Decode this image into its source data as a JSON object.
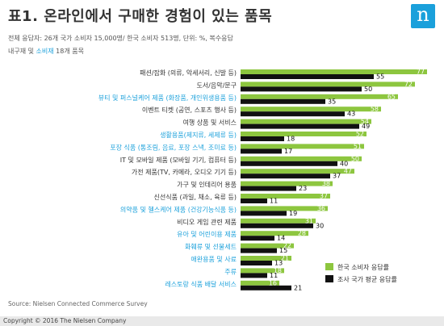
{
  "header": {
    "title": "표1. 온라인에서 구매한 경험이 있는 품목",
    "logo_letter": "n",
    "subtitle_line1": "전체 응답자: 26개 국가 소비자 15,000명/ 한국 소비자 513명, 단위: %, 복수응답",
    "subtitle_line2_prefix": "내구재 및 ",
    "subtitle_line2_highlight": "소비재",
    "subtitle_line2_suffix": " 18개 품목"
  },
  "footer": {
    "source": "Source: Nielsen Connected Commerce Survey",
    "copyright": "Copyright © 2016 The Nielsen Company"
  },
  "colors": {
    "korea": "#8dc63f",
    "avg": "#111111",
    "consumables_label": "#1aa0db",
    "durables_label": "#333333"
  },
  "chart_data": {
    "type": "bar",
    "orientation": "horizontal",
    "categories": [
      "패션/잡화 (의류, 악세서리, 신발 등)",
      "도서/음악/문구",
      "뷰티 및 퍼스널케어 제품 (화장품, 개인위생용품 등)",
      "이벤트 티켓 (공연, 스포츠 행사 등)",
      "여행 상품 및 서비스",
      "생활용품(제지류, 세제류 등)",
      "포장 식품 (통조림, 음료, 포장 스낵, 조미료 등)",
      "IT 및 모바일 제품 (모바일 기기, 컴퓨터 등)",
      "가전 제품(TV, 카메라, 오디오 기기 등)",
      "가구 및 인테리어 용품",
      "신선식품 (과일, 채소, 육류 등)",
      "의약품 및 헬스케어 제품 (건강기능식품 등)",
      "비디오 게임 관련 제품",
      "유아 및 어린이용 제품",
      "화훼류 및 선물세트",
      "애완용품 및 사료",
      "주류",
      "레스토랑 식품 배달 서비스"
    ],
    "category_group": [
      "durable",
      "durable",
      "consumable",
      "durable",
      "durable",
      "consumable",
      "consumable",
      "durable",
      "durable",
      "durable",
      "durable",
      "consumable",
      "durable",
      "consumable",
      "consumable",
      "consumable",
      "consumable",
      "consumable"
    ],
    "series": [
      {
        "name": "한국 소비자 응답률",
        "values": [
          77,
          72,
          65,
          58,
          54,
          52,
          51,
          50,
          47,
          38,
          37,
          36,
          31,
          28,
          22,
          21,
          18,
          16
        ]
      },
      {
        "name": "조사 국가 평균 응답률",
        "values": [
          55,
          50,
          35,
          43,
          49,
          18,
          17,
          40,
          37,
          23,
          11,
          19,
          30,
          14,
          15,
          13,
          11,
          21
        ]
      }
    ],
    "xlim": [
      0,
      80
    ],
    "legend_position": "bottom-right"
  }
}
